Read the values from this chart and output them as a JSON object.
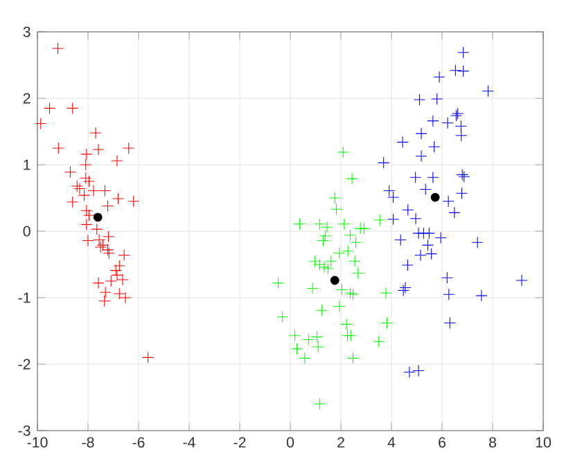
{
  "chart_data": {
    "type": "scatter",
    "xlim": [
      -10,
      10
    ],
    "ylim": [
      -3,
      3
    ],
    "xticks": [
      -10,
      -8,
      -6,
      -4,
      -2,
      0,
      2,
      4,
      6,
      8,
      10
    ],
    "yticks": [
      -3,
      -2,
      -1,
      0,
      1,
      2,
      3
    ],
    "grid": true,
    "series": [
      {
        "color": "#ff0000",
        "marker": "cross",
        "x": [
          -9.19,
          -9.52,
          -8.61,
          -9.87,
          -7.7,
          -9.17,
          -7.59,
          -6.39,
          -8.06,
          -6.85,
          -8.09,
          -8.7,
          -8.09,
          -7.96,
          -8.43,
          -8.33,
          -7.78,
          -7.33,
          -8.15,
          -8.61,
          -6.81,
          -6.2,
          -7.22,
          -8.06,
          -7.96,
          -8.06,
          -7.65,
          -7.19,
          -8.0,
          -7.56,
          -7.41,
          -7.22,
          -7.17,
          -6.57,
          -7.5,
          -6.76,
          -6.85,
          -6.63,
          -7.09,
          -7.59,
          -7.31,
          -6.76,
          -6.52,
          -7.35,
          -5.63,
          -6.9
        ],
        "values": [
          2.75,
          1.85,
          1.85,
          1.62,
          1.48,
          1.25,
          1.23,
          1.25,
          1.16,
          1.06,
          1.0,
          0.89,
          0.8,
          0.75,
          0.68,
          0.64,
          0.61,
          0.61,
          0.54,
          0.44,
          0.49,
          0.45,
          0.38,
          0.31,
          0.24,
          0.1,
          0.03,
          -0.08,
          -0.14,
          -0.13,
          -0.21,
          -0.28,
          -0.33,
          -0.36,
          -0.24,
          -0.52,
          -0.66,
          -0.73,
          -0.75,
          -0.78,
          -0.92,
          -0.94,
          -1.0,
          -1.05,
          -1.9,
          -0.59
        ]
      },
      {
        "color": "#00ff00",
        "marker": "cross",
        "x": [
          2.09,
          2.44,
          1.76,
          1.82,
          0.37,
          1.16,
          1.45,
          2.13,
          3.54,
          2.77,
          2.92,
          2.37,
          1.38,
          1.3,
          2.59,
          2.28,
          1.94,
          2.55,
          0.97,
          1.16,
          1.61,
          1.34,
          1.49,
          2.68,
          -0.48,
          0.88,
          2.04,
          2.37,
          2.48,
          3.78,
          1.25,
          1.94,
          -0.31,
          2.22,
          3.82,
          0.18,
          0.72,
          1.06,
          2.26,
          2.39,
          3.5,
          0.26,
          1.1,
          0.57,
          2.48,
          1.16
        ],
        "values": [
          1.19,
          0.79,
          0.5,
          0.33,
          0.11,
          0.11,
          0.06,
          0.11,
          0.17,
          0.04,
          0.04,
          -0.06,
          -0.07,
          -0.14,
          -0.17,
          -0.3,
          -0.33,
          -0.45,
          -0.45,
          -0.5,
          -0.45,
          -0.54,
          -0.56,
          -0.63,
          -0.78,
          -0.86,
          -0.88,
          -0.93,
          -0.95,
          -0.93,
          -1.19,
          -1.13,
          -1.29,
          -1.4,
          -1.38,
          -1.57,
          -1.63,
          -1.59,
          -1.57,
          -1.57,
          -1.66,
          -1.77,
          -1.74,
          -1.91,
          -1.91,
          -2.6
        ]
      },
      {
        "color": "#0000ff",
        "marker": "cross",
        "x": [
          6.84,
          5.89,
          6.53,
          6.84,
          7.82,
          5.11,
          5.8,
          6.62,
          6.56,
          5.64,
          6.22,
          6.75,
          6.76,
          5.18,
          4.44,
          5.69,
          5.18,
          3.69,
          4.95,
          5.64,
          6.8,
          6.87,
          3.91,
          4.07,
          5.35,
          6.78,
          6.25,
          6.49,
          4.65,
          4.96,
          4.07,
          5.07,
          5.27,
          5.49,
          5.95,
          4.36,
          7.4,
          5.44,
          5.15,
          5.58,
          4.64,
          6.2,
          9.15,
          4.55,
          4.47,
          6.27,
          7.56,
          6.31,
          4.71,
          5.07
        ],
        "values": [
          2.69,
          2.32,
          2.42,
          2.41,
          2.11,
          1.98,
          1.99,
          1.77,
          1.74,
          1.66,
          1.63,
          1.58,
          1.44,
          1.47,
          1.34,
          1.27,
          1.13,
          1.03,
          0.81,
          0.81,
          0.85,
          0.82,
          0.61,
          0.51,
          0.63,
          0.57,
          0.45,
          0.28,
          0.32,
          0.19,
          0.18,
          -0.03,
          -0.03,
          -0.03,
          -0.1,
          -0.13,
          -0.17,
          -0.21,
          -0.36,
          -0.34,
          -0.51,
          -0.7,
          -0.74,
          -0.85,
          -0.89,
          -0.95,
          -0.97,
          -1.38,
          -2.12,
          -2.1
        ]
      },
      {
        "color": "#000000",
        "marker": "circle",
        "x": [
          -7.61,
          1.76,
          5.73
        ],
        "values": [
          0.21,
          -0.74,
          0.51
        ]
      }
    ]
  }
}
